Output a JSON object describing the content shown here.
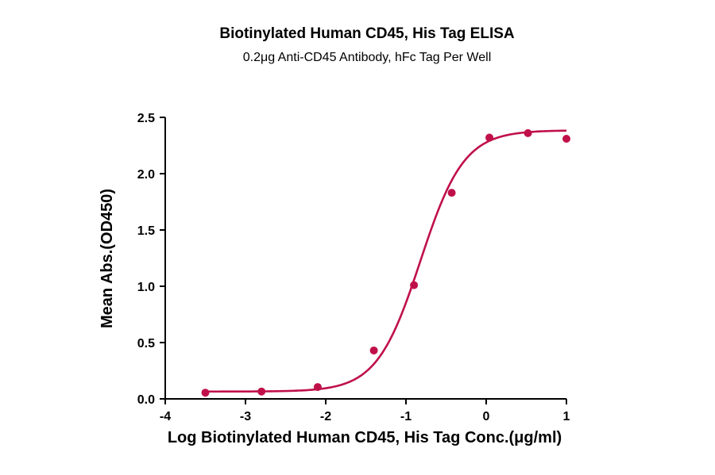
{
  "chart_data": {
    "type": "scatter",
    "title": "Biotinylated Human CD45, His Tag ELISA",
    "subtitle": "0.2μg Anti-CD45 Antibody, hFc Tag Per Well",
    "xlabel": "Log Biotinylated Human CD45, His Tag Conc.(μg/ml)",
    "ylabel": "Mean Abs.(OD450)",
    "xlim": [
      -4,
      1
    ],
    "ylim": [
      0,
      2.5
    ],
    "xticks": [
      "-4",
      "-3",
      "-2",
      "-1",
      "0",
      "1"
    ],
    "yticks": [
      "0.0",
      "0.5",
      "1.0",
      "1.5",
      "2.0",
      "2.5"
    ],
    "grid": false,
    "series": [
      {
        "color": "#c0104a",
        "x": [
          -3.5,
          -2.8,
          -2.1,
          -1.4,
          -0.9,
          -0.43,
          0.04,
          0.52,
          1.0
        ],
        "y": [
          0.055,
          0.065,
          0.105,
          0.43,
          1.01,
          1.83,
          2.32,
          2.36,
          2.31
        ],
        "fit": {
          "model": "4PL",
          "bottom": 0.065,
          "top": 2.385,
          "logEC50": -0.82,
          "hillslope": 1.6
        }
      }
    ]
  }
}
